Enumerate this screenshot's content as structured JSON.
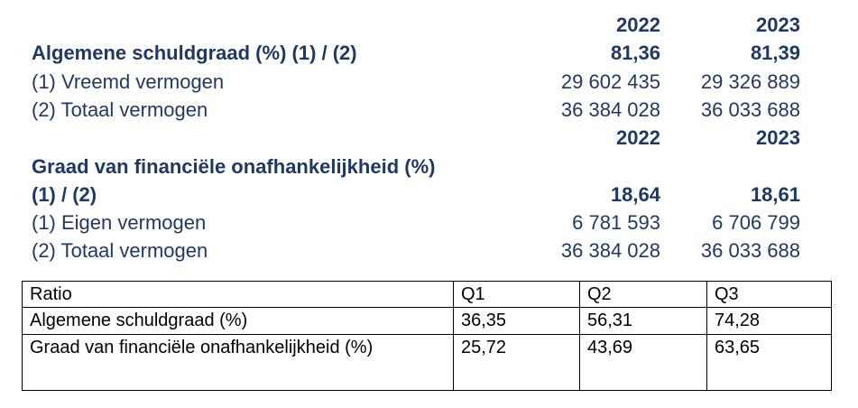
{
  "sections": [
    {
      "years": [
        "2022",
        "2023"
      ],
      "title_lines": [
        "Algemene schuldgraad (%) (1) / (2)"
      ],
      "title_values": [
        "81,36",
        "81,39"
      ],
      "rows": [
        {
          "label": "(1) Vreemd vermogen",
          "values": [
            "29 602 435",
            "29 326 889"
          ]
        },
        {
          "label": "(2) Totaal vermogen",
          "values": [
            "36 384 028",
            "36 033 688"
          ]
        }
      ]
    },
    {
      "years": [
        "2022",
        "2023"
      ],
      "title_lines": [
        "Graad van financiële onafhankelijkheid (%)",
        "(1) / (2)"
      ],
      "title_values": [
        "18,64",
        "18,61"
      ],
      "rows": [
        {
          "label": "(1) Eigen vermogen",
          "values": [
            "6 781 593",
            "6 706 799"
          ]
        },
        {
          "label": "(2) Totaal vermogen",
          "values": [
            "36 384 028",
            "36 033 688"
          ]
        }
      ]
    }
  ],
  "table": {
    "header": [
      "Ratio",
      "Q1",
      "Q2",
      "Q3"
    ],
    "rows": [
      [
        "Algemene schuldgraad (%)",
        "36,35",
        "56,31",
        "74,28"
      ],
      [
        "Graad van financiële onafhankelijkheid (%)",
        "25,72",
        "43,69",
        "63,65"
      ]
    ]
  }
}
